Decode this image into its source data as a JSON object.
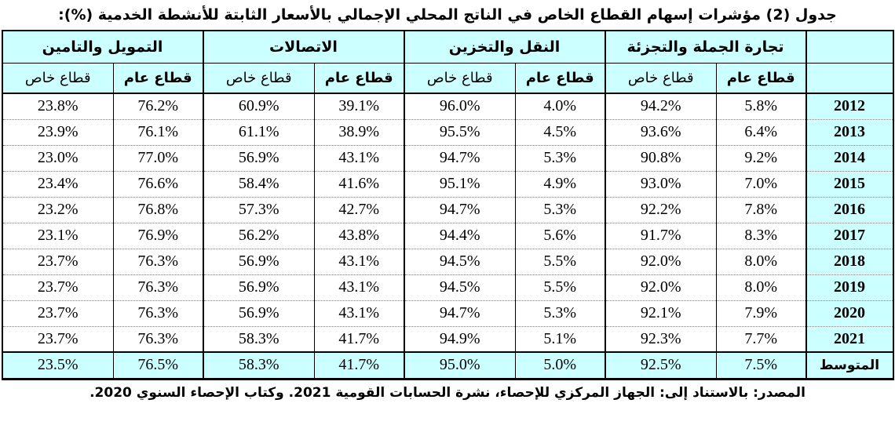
{
  "page": {
    "title": "جدول (2) مؤشرات إسهام القطاع الخاص في الناتج المحلي الإجمالي بالأسعار الثابتة للأنشطة الخدمية (%):",
    "source_note": "المصدر: بالاستناد إلى: الجهاز المركزي للإحصاء، نشرة الحسابات القومية 2021. وكتاب الإحصاء السنوي 2020."
  },
  "colors": {
    "header_bg": "#CCFFFF",
    "border": "#000000",
    "row_divider": "#808080",
    "text": "#000000",
    "page_bg": "#FFFFFF"
  },
  "table": {
    "year_column_header": "",
    "average_label": "المتوسط",
    "groups": [
      {
        "key": "trade",
        "label": "تجارة الجملة والتجزئة"
      },
      {
        "key": "transport",
        "label": "النقل والتخزين"
      },
      {
        "key": "communications",
        "label": "الاتصالات"
      },
      {
        "key": "finance",
        "label": "التمويل والتامين"
      }
    ],
    "subheaders": {
      "public": "قطاع عام",
      "private": "قطاع خاص"
    },
    "rows": [
      {
        "year": "2012",
        "average": false,
        "values": {
          "trade": {
            "public": "5.8%",
            "private": "94.2%"
          },
          "transport": {
            "public": "4.0%",
            "private": "96.0%"
          },
          "communications": {
            "public": "39.1%",
            "private": "60.9%"
          },
          "finance": {
            "public": "76.2%",
            "private": "23.8%"
          }
        }
      },
      {
        "year": "2013",
        "average": false,
        "values": {
          "trade": {
            "public": "6.4%",
            "private": "93.6%"
          },
          "transport": {
            "public": "4.5%",
            "private": "95.5%"
          },
          "communications": {
            "public": "38.9%",
            "private": "61.1%"
          },
          "finance": {
            "public": "76.1%",
            "private": "23.9%"
          }
        }
      },
      {
        "year": "2014",
        "average": false,
        "values": {
          "trade": {
            "public": "9.2%",
            "private": "90.8%"
          },
          "transport": {
            "public": "5.3%",
            "private": "94.7%"
          },
          "communications": {
            "public": "43.1%",
            "private": "56.9%"
          },
          "finance": {
            "public": "77.0%",
            "private": "23.0%"
          }
        }
      },
      {
        "year": "2015",
        "average": false,
        "values": {
          "trade": {
            "public": "7.0%",
            "private": "93.0%"
          },
          "transport": {
            "public": "4.9%",
            "private": "95.1%"
          },
          "communications": {
            "public": "41.6%",
            "private": "58.4%"
          },
          "finance": {
            "public": "76.6%",
            "private": "23.4%"
          }
        }
      },
      {
        "year": "2016",
        "average": false,
        "values": {
          "trade": {
            "public": "7.8%",
            "private": "92.2%"
          },
          "transport": {
            "public": "5.3%",
            "private": "94.7%"
          },
          "communications": {
            "public": "42.7%",
            "private": "57.3%"
          },
          "finance": {
            "public": "76.8%",
            "private": "23.2%"
          }
        }
      },
      {
        "year": "2017",
        "average": false,
        "values": {
          "trade": {
            "public": "8.3%",
            "private": "91.7%"
          },
          "transport": {
            "public": "5.6%",
            "private": "94.4%"
          },
          "communications": {
            "public": "43.8%",
            "private": "56.2%"
          },
          "finance": {
            "public": "76.9%",
            "private": "23.1%"
          }
        }
      },
      {
        "year": "2018",
        "average": false,
        "values": {
          "trade": {
            "public": "8.0%",
            "private": "92.0%"
          },
          "transport": {
            "public": "5.5%",
            "private": "94.5%"
          },
          "communications": {
            "public": "43.1%",
            "private": "56.9%"
          },
          "finance": {
            "public": "76.3%",
            "private": "23.7%"
          }
        }
      },
      {
        "year": "2019",
        "average": false,
        "values": {
          "trade": {
            "public": "8.0%",
            "private": "92.0%"
          },
          "transport": {
            "public": "5.5%",
            "private": "94.5%"
          },
          "communications": {
            "public": "43.1%",
            "private": "56.9%"
          },
          "finance": {
            "public": "76.3%",
            "private": "23.7%"
          }
        }
      },
      {
        "year": "2020",
        "average": false,
        "values": {
          "trade": {
            "public": "7.9%",
            "private": "92.1%"
          },
          "transport": {
            "public": "5.3%",
            "private": "94.7%"
          },
          "communications": {
            "public": "43.1%",
            "private": "56.9%"
          },
          "finance": {
            "public": "76.3%",
            "private": "23.7%"
          }
        }
      },
      {
        "year": "2021",
        "average": false,
        "values": {
          "trade": {
            "public": "7.7%",
            "private": "92.3%"
          },
          "transport": {
            "public": "5.1%",
            "private": "94.9%"
          },
          "communications": {
            "public": "41.7%",
            "private": "58.3%"
          },
          "finance": {
            "public": "76.3%",
            "private": "23.7%"
          }
        }
      },
      {
        "year": "المتوسط",
        "average": true,
        "values": {
          "trade": {
            "public": "7.5%",
            "private": "92.5%"
          },
          "transport": {
            "public": "5.0%",
            "private": "95.0%"
          },
          "communications": {
            "public": "41.7%",
            "private": "58.3%"
          },
          "finance": {
            "public": "76.5%",
            "private": "23.5%"
          }
        }
      }
    ]
  },
  "chart_data": {
    "type": "table",
    "title": "جدول (2) مؤشرات إسهام القطاع الخاص في الناتج المحلي الإجمالي بالأسعار الثابتة للأنشطة الخدمية (%)",
    "unit": "%",
    "categories": [
      "2012",
      "2013",
      "2014",
      "2015",
      "2016",
      "2017",
      "2018",
      "2019",
      "2020",
      "2021",
      "المتوسط"
    ],
    "series": [
      {
        "name": "تجارة الجملة والتجزئة - قطاع عام",
        "values": [
          5.8,
          6.4,
          9.2,
          7.0,
          7.8,
          8.3,
          8.0,
          8.0,
          7.9,
          7.7,
          7.5
        ]
      },
      {
        "name": "تجارة الجملة والتجزئة - قطاع خاص",
        "values": [
          94.2,
          93.6,
          90.8,
          93.0,
          92.2,
          91.7,
          92.0,
          92.0,
          92.1,
          92.3,
          92.5
        ]
      },
      {
        "name": "النقل والتخزين - قطاع عام",
        "values": [
          4.0,
          4.5,
          5.3,
          4.9,
          5.3,
          5.6,
          5.5,
          5.5,
          5.3,
          5.1,
          5.0
        ]
      },
      {
        "name": "النقل والتخزين - قطاع خاص",
        "values": [
          96.0,
          95.5,
          94.7,
          95.1,
          94.7,
          94.4,
          94.5,
          94.5,
          94.7,
          94.9,
          95.0
        ]
      },
      {
        "name": "الاتصالات - قطاع عام",
        "values": [
          39.1,
          38.9,
          43.1,
          41.6,
          42.7,
          43.8,
          43.1,
          43.1,
          43.1,
          41.7,
          41.7
        ]
      },
      {
        "name": "الاتصالات - قطاع خاص",
        "values": [
          60.9,
          61.1,
          56.9,
          58.4,
          57.3,
          56.2,
          56.9,
          56.9,
          56.9,
          58.3,
          58.3
        ]
      },
      {
        "name": "التمويل والتامين - قطاع عام",
        "values": [
          76.2,
          76.1,
          77.0,
          76.6,
          76.8,
          76.9,
          76.3,
          76.3,
          76.3,
          76.3,
          76.5
        ]
      },
      {
        "name": "التمويل والتامين - قطاع خاص",
        "values": [
          23.8,
          23.9,
          23.0,
          23.4,
          23.2,
          23.1,
          23.7,
          23.7,
          23.7,
          23.7,
          23.5
        ]
      }
    ]
  }
}
